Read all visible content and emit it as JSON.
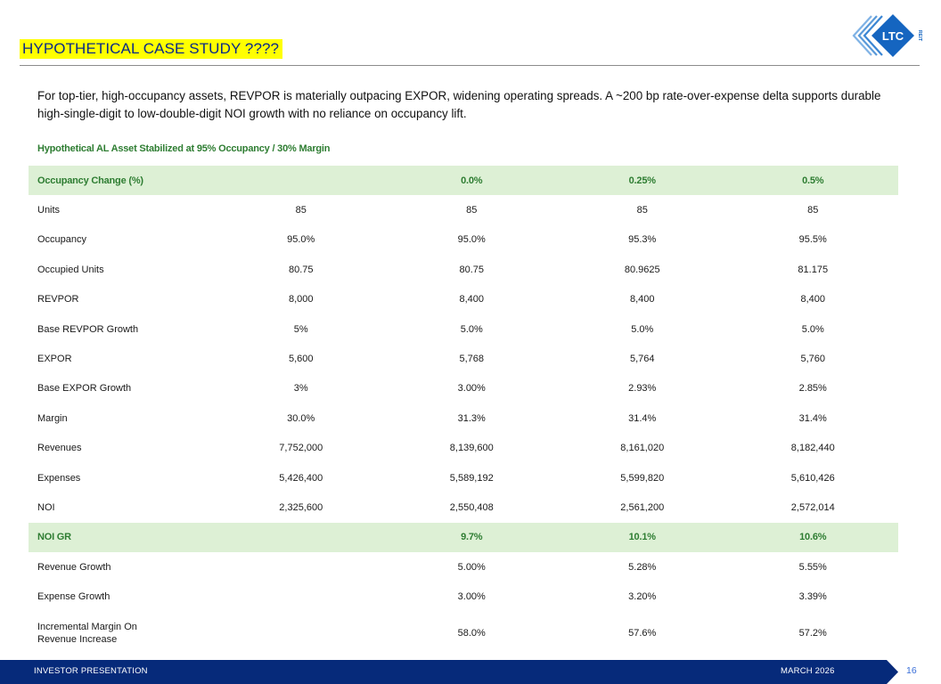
{
  "header": {
    "title": "HYPOTHETICAL CASE STUDY ????",
    "logo_text": "LTC",
    "logo_subtext": "REIT"
  },
  "intro": "For top-tier, high-occupancy assets, REVPOR is materially outpacing EXPOR, widening operating spreads. A ~200 bp rate-over-expense delta supports durable high-single-digit to low-double-digit NOI growth with no reliance on occupancy lift.",
  "table": {
    "subhead": "Hypothetical AL Asset Stabilized at 95% Occupancy / 30% Margin",
    "header_row": {
      "label": "Occupancy Change (%)",
      "cells": [
        "",
        "0.0%",
        "0.25%",
        "0.5%"
      ]
    },
    "rows": [
      {
        "label": "Units",
        "cells": [
          "85",
          "85",
          "85",
          "85"
        ]
      },
      {
        "label": "Occupancy",
        "cells": [
          "95.0%",
          "95.0%",
          "95.3%",
          "95.5%"
        ]
      },
      {
        "label": "Occupied Units",
        "cells": [
          "80.75",
          "80.75",
          "80.9625",
          "81.175"
        ]
      },
      {
        "label": "REVPOR",
        "cells": [
          "8,000",
          "8,400",
          "8,400",
          "8,400"
        ]
      },
      {
        "label": "Base REVPOR Growth",
        "cells": [
          "5%",
          "5.0%",
          "5.0%",
          "5.0%"
        ]
      },
      {
        "label": "EXPOR",
        "cells": [
          "5,600",
          "5,768",
          "5,764",
          "5,760"
        ]
      },
      {
        "label": "Base EXPOR Growth",
        "cells": [
          "3%",
          "3.00%",
          "2.93%",
          "2.85%"
        ]
      },
      {
        "label": "Margin",
        "cells": [
          "30.0%",
          "31.3%",
          "31.4%",
          "31.4%"
        ]
      },
      {
        "label": "Revenues",
        "cells": [
          "7,752,000",
          "8,139,600",
          "8,161,020",
          "8,182,440"
        ]
      },
      {
        "label": "Expenses",
        "cells": [
          "5,426,400",
          "5,589,192",
          "5,599,820",
          "5,610,426"
        ]
      },
      {
        "label": "NOI",
        "cells": [
          "2,325,600",
          "2,550,408",
          "2,561,200",
          "2,572,014"
        ]
      }
    ],
    "noi_gr_row": {
      "label": "NOI GR",
      "cells": [
        "",
        "9.7%",
        "10.1%",
        "10.6%"
      ]
    },
    "rows_after": [
      {
        "label": "Revenue Growth",
        "cells": [
          "",
          "5.00%",
          "5.28%",
          "5.55%"
        ]
      },
      {
        "label": "Expense Growth",
        "cells": [
          "",
          "3.00%",
          "3.20%",
          "3.39%"
        ]
      }
    ],
    "last_row": {
      "label_line1": "Incremental Margin On",
      "label_line2": "Revenue Increase",
      "cells": [
        "",
        "58.0%",
        "57.6%",
        "57.2%"
      ]
    }
  },
  "footer": {
    "left": "INVESTOR PRESENTATION",
    "right": "MARCH 2026",
    "page": "16"
  },
  "colors": {
    "title_bg": "#ffff00",
    "title_text": "#0a2a88",
    "highlight_row_bg": "#ddf0d5",
    "highlight_row_text": "#2e7d32",
    "footer_bg": "#062a7a",
    "logo_blue": "#1565c0",
    "logo_light": "#7fb2e5"
  }
}
